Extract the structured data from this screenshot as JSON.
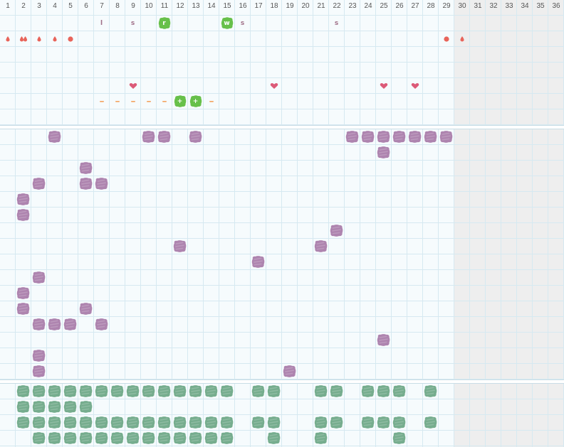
{
  "colors": {
    "purple_stamp": "#a77aa8",
    "green_stamp": "#6aa684",
    "lime_stamp": "#67c04a",
    "drop_red": "#e8645a",
    "heart_pink": "#dc5a78",
    "dash_orange": "#f4a460",
    "letter_mauve": "#a07088",
    "grid_line": "#d6e9f1",
    "disabled_column": "#eeeeee"
  },
  "columns": [
    {
      "label": "1",
      "enabled": true
    },
    {
      "label": "2",
      "enabled": true
    },
    {
      "label": "3",
      "enabled": true
    },
    {
      "label": "4",
      "enabled": true
    },
    {
      "label": "5",
      "enabled": true
    },
    {
      "label": "6",
      "enabled": true
    },
    {
      "label": "7",
      "enabled": true
    },
    {
      "label": "8",
      "enabled": true
    },
    {
      "label": "9",
      "enabled": true
    },
    {
      "label": "10",
      "enabled": true
    },
    {
      "label": "11",
      "enabled": true
    },
    {
      "label": "12",
      "enabled": true
    },
    {
      "label": "13",
      "enabled": true
    },
    {
      "label": "14",
      "enabled": true
    },
    {
      "label": "15",
      "enabled": true
    },
    {
      "label": "16",
      "enabled": true
    },
    {
      "label": "17",
      "enabled": true
    },
    {
      "label": "18",
      "enabled": true
    },
    {
      "label": "19",
      "enabled": true
    },
    {
      "label": "20",
      "enabled": true
    },
    {
      "label": "21",
      "enabled": true
    },
    {
      "label": "22",
      "enabled": true
    },
    {
      "label": "23",
      "enabled": true
    },
    {
      "label": "24",
      "enabled": true
    },
    {
      "label": "25",
      "enabled": true
    },
    {
      "label": "26",
      "enabled": true
    },
    {
      "label": "27",
      "enabled": true
    },
    {
      "label": "28",
      "enabled": true
    },
    {
      "label": "29",
      "enabled": true
    },
    {
      "label": "30",
      "enabled": false
    },
    {
      "label": "31",
      "enabled": false
    },
    {
      "label": "32",
      "enabled": false
    },
    {
      "label": "33",
      "enabled": false
    },
    {
      "label": "34",
      "enabled": false
    },
    {
      "label": "35",
      "enabled": false
    },
    {
      "label": "36",
      "enabled": false
    }
  ],
  "sections": [
    {
      "name": "log-section",
      "rows": 7,
      "marks": [
        {
          "row": 0,
          "col": 7,
          "type": "letter",
          "text": "l"
        },
        {
          "row": 0,
          "col": 9,
          "type": "letter",
          "text": "s"
        },
        {
          "row": 0,
          "col": 11,
          "type": "badge",
          "text": "r"
        },
        {
          "row": 0,
          "col": 15,
          "type": "badge",
          "text": "w"
        },
        {
          "row": 0,
          "col": 16,
          "type": "letter",
          "text": "s"
        },
        {
          "row": 0,
          "col": 22,
          "type": "letter",
          "text": "s"
        },
        {
          "row": 1,
          "col": 1,
          "type": "drop"
        },
        {
          "row": 1,
          "col": 2,
          "type": "drops"
        },
        {
          "row": 1,
          "col": 3,
          "type": "drop"
        },
        {
          "row": 1,
          "col": 4,
          "type": "drop"
        },
        {
          "row": 1,
          "col": 5,
          "type": "dot"
        },
        {
          "row": 1,
          "col": 29,
          "type": "dot"
        },
        {
          "row": 1,
          "col": 30,
          "type": "drop"
        },
        {
          "row": 4,
          "col": 9,
          "type": "heart"
        },
        {
          "row": 4,
          "col": 18,
          "type": "heart"
        },
        {
          "row": 4,
          "col": 25,
          "type": "heart"
        },
        {
          "row": 4,
          "col": 27,
          "type": "heart"
        },
        {
          "row": 5,
          "col": 7,
          "type": "dash"
        },
        {
          "row": 5,
          "col": 8,
          "type": "dash"
        },
        {
          "row": 5,
          "col": 9,
          "type": "dash"
        },
        {
          "row": 5,
          "col": 10,
          "type": "dash"
        },
        {
          "row": 5,
          "col": 11,
          "type": "dash"
        },
        {
          "row": 5,
          "col": 12,
          "type": "badge",
          "text": "+"
        },
        {
          "row": 5,
          "col": 13,
          "type": "badge",
          "text": "+"
        },
        {
          "row": 5,
          "col": 14,
          "type": "dash"
        }
      ]
    },
    {
      "name": "purple-section",
      "rows": 16,
      "cells": [
        [
          0,
          4
        ],
        [
          0,
          10
        ],
        [
          0,
          11
        ],
        [
          0,
          13
        ],
        [
          0,
          23
        ],
        [
          0,
          24
        ],
        [
          0,
          25
        ],
        [
          0,
          26
        ],
        [
          0,
          27
        ],
        [
          0,
          28
        ],
        [
          0,
          29
        ],
        [
          1,
          25
        ],
        [
          2,
          6
        ],
        [
          3,
          3
        ],
        [
          3,
          6
        ],
        [
          3,
          7
        ],
        [
          4,
          2
        ],
        [
          5,
          2
        ],
        [
          6,
          22
        ],
        [
          7,
          12
        ],
        [
          7,
          21
        ],
        [
          8,
          17
        ],
        [
          9,
          3
        ],
        [
          10,
          2
        ],
        [
          11,
          2
        ],
        [
          11,
          6
        ],
        [
          12,
          3
        ],
        [
          12,
          4
        ],
        [
          12,
          5
        ],
        [
          12,
          7
        ],
        [
          13,
          25
        ],
        [
          14,
          3
        ],
        [
          15,
          3
        ],
        [
          15,
          19
        ]
      ]
    },
    {
      "name": "green-section",
      "rows": 4,
      "cells": [
        [
          0,
          2
        ],
        [
          0,
          3
        ],
        [
          0,
          4
        ],
        [
          0,
          5
        ],
        [
          0,
          6
        ],
        [
          0,
          7
        ],
        [
          0,
          8
        ],
        [
          0,
          9
        ],
        [
          0,
          10
        ],
        [
          0,
          11
        ],
        [
          0,
          12
        ],
        [
          0,
          13
        ],
        [
          0,
          14
        ],
        [
          0,
          15
        ],
        [
          0,
          17
        ],
        [
          0,
          18
        ],
        [
          0,
          21
        ],
        [
          0,
          22
        ],
        [
          0,
          24
        ],
        [
          0,
          25
        ],
        [
          0,
          26
        ],
        [
          0,
          28
        ],
        [
          1,
          2
        ],
        [
          1,
          3
        ],
        [
          1,
          4
        ],
        [
          1,
          5
        ],
        [
          1,
          6
        ],
        [
          2,
          2
        ],
        [
          2,
          3
        ],
        [
          2,
          4
        ],
        [
          2,
          5
        ],
        [
          2,
          6
        ],
        [
          2,
          7
        ],
        [
          2,
          8
        ],
        [
          2,
          9
        ],
        [
          2,
          10
        ],
        [
          2,
          11
        ],
        [
          2,
          12
        ],
        [
          2,
          13
        ],
        [
          2,
          14
        ],
        [
          2,
          15
        ],
        [
          2,
          17
        ],
        [
          2,
          18
        ],
        [
          2,
          21
        ],
        [
          2,
          22
        ],
        [
          2,
          24
        ],
        [
          2,
          25
        ],
        [
          2,
          26
        ],
        [
          2,
          28
        ],
        [
          3,
          3
        ],
        [
          3,
          4
        ],
        [
          3,
          5
        ],
        [
          3,
          6
        ],
        [
          3,
          7
        ],
        [
          3,
          8
        ],
        [
          3,
          9
        ],
        [
          3,
          10
        ],
        [
          3,
          11
        ],
        [
          3,
          12
        ],
        [
          3,
          13
        ],
        [
          3,
          14
        ],
        [
          3,
          15
        ],
        [
          3,
          18
        ],
        [
          3,
          21
        ],
        [
          3,
          26
        ]
      ]
    }
  ]
}
